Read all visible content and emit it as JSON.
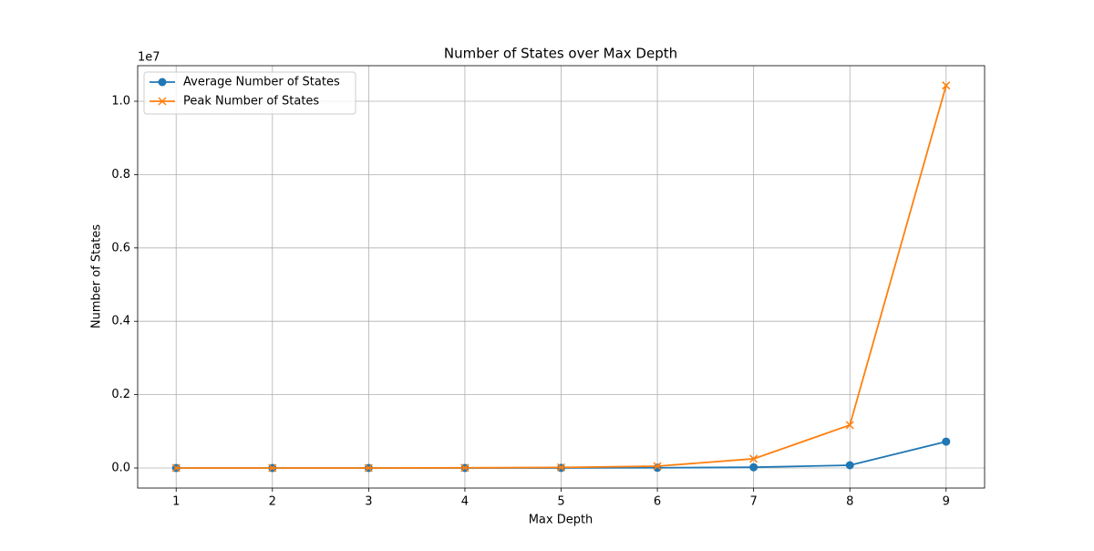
{
  "chart_data": {
    "type": "line",
    "title": "Number of States over Max Depth",
    "x_label": "Max Depth",
    "y_label": "Number of States",
    "y_offset_label": "1e7",
    "x": [
      1,
      2,
      3,
      4,
      5,
      6,
      7,
      8,
      9
    ],
    "series": [
      {
        "name": "Average Number of States",
        "color": "#1f77b4",
        "marker": "o",
        "values": [
          10,
          50,
          200,
          800,
          2000,
          6000,
          20000,
          75000,
          720000
        ]
      },
      {
        "name": "Peak Number of States",
        "color": "#ff7f0e",
        "marker": "x",
        "values": [
          50,
          200,
          1000,
          5000,
          15000,
          50000,
          250000,
          1170000,
          10430000
        ]
      }
    ],
    "xlim": [
      0.6,
      9.4
    ],
    "xticks": [
      1,
      2,
      3,
      4,
      5,
      6,
      7,
      8,
      9
    ],
    "ylim": [
      -547000,
      10970000
    ],
    "yticks": [
      {
        "value": 0,
        "label": "0.0"
      },
      {
        "value": 2000000,
        "label": "0.2"
      },
      {
        "value": 4000000,
        "label": "0.4"
      },
      {
        "value": 6000000,
        "label": "0.6"
      },
      {
        "value": 8000000,
        "label": "0.8"
      },
      {
        "value": 10000000,
        "label": "1.0"
      }
    ],
    "grid": true,
    "legend": "upper-left"
  }
}
